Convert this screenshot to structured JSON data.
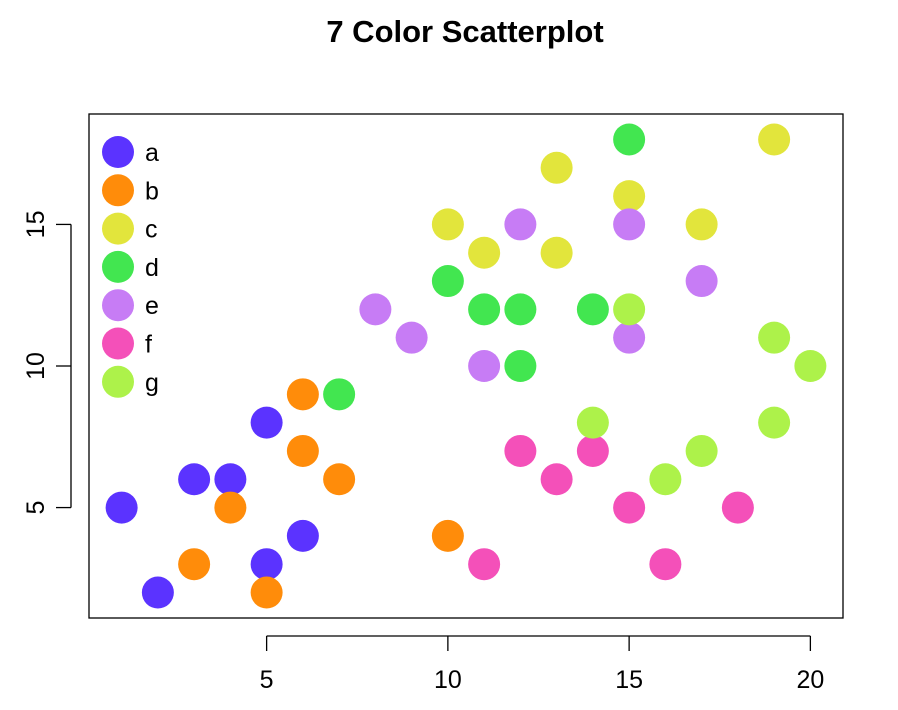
{
  "chart_data": {
    "type": "scatter",
    "title": "7 Color Scatterplot",
    "xlabel": "",
    "ylabel": "",
    "xlim": [
      0.1,
      20.9
    ],
    "ylim": [
      1.1,
      18.9
    ],
    "x_ticks": [
      5,
      10,
      15,
      20
    ],
    "y_ticks": [
      5,
      10,
      15
    ],
    "legend_position": "top-left",
    "grid": false,
    "series": [
      {
        "name": "a",
        "color": "#5B33FF",
        "points": [
          [
            1,
            5
          ],
          [
            2,
            2
          ],
          [
            3,
            6
          ],
          [
            4,
            6
          ],
          [
            5,
            8
          ],
          [
            5,
            3
          ],
          [
            6,
            4
          ]
        ]
      },
      {
        "name": "b",
        "color": "#FF8C0A",
        "points": [
          [
            3,
            3
          ],
          [
            4,
            5
          ],
          [
            5,
            2
          ],
          [
            6,
            9
          ],
          [
            6,
            7
          ],
          [
            7,
            6
          ],
          [
            10,
            4
          ]
        ]
      },
      {
        "name": "c",
        "color": "#E2E53C",
        "points": [
          [
            10,
            15
          ],
          [
            11,
            14
          ],
          [
            13,
            17
          ],
          [
            13,
            14
          ],
          [
            15,
            16
          ],
          [
            17,
            15
          ],
          [
            19,
            18
          ]
        ]
      },
      {
        "name": "d",
        "color": "#42E650",
        "points": [
          [
            7,
            9
          ],
          [
            10,
            13
          ],
          [
            11,
            12
          ],
          [
            12,
            12
          ],
          [
            12,
            10
          ],
          [
            14,
            12
          ],
          [
            15,
            18
          ]
        ]
      },
      {
        "name": "e",
        "color": "#C77CF5",
        "points": [
          [
            8,
            12
          ],
          [
            9,
            11
          ],
          [
            11,
            10
          ],
          [
            12,
            15
          ],
          [
            15,
            15
          ],
          [
            15,
            11
          ],
          [
            17,
            13
          ]
        ]
      },
      {
        "name": "f",
        "color": "#F450B9",
        "points": [
          [
            11,
            3
          ],
          [
            12,
            7
          ],
          [
            13,
            6
          ],
          [
            14,
            7
          ],
          [
            15,
            5
          ],
          [
            16,
            3
          ],
          [
            18,
            5
          ]
        ]
      },
      {
        "name": "g",
        "color": "#ADF24A",
        "points": [
          [
            14,
            8
          ],
          [
            15,
            12
          ],
          [
            16,
            6
          ],
          [
            17,
            7
          ],
          [
            19,
            11
          ],
          [
            19,
            8
          ],
          [
            20,
            10
          ]
        ]
      }
    ]
  }
}
